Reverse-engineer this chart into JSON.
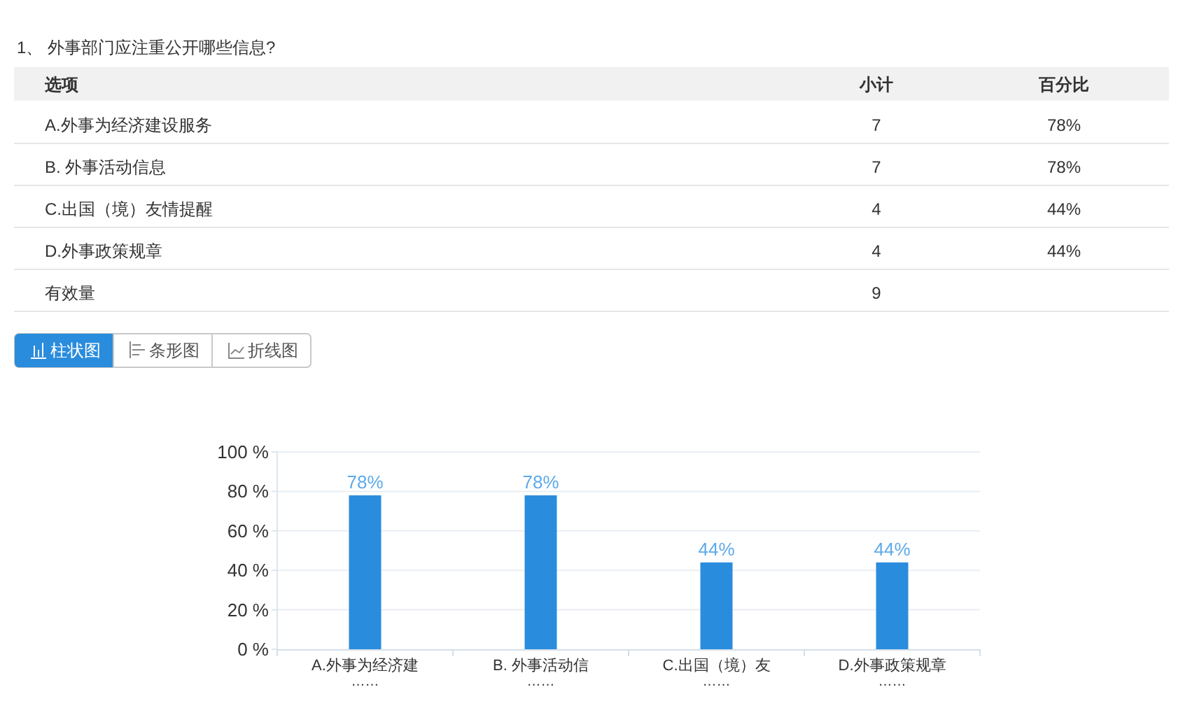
{
  "chart_data": [
    {
      "type": "other",
      "title": "1、 外事部门应注重公开哪些信息?",
      "xlabel": "选项",
      "categories": [
        "A.外事为经济建设服务",
        "B. 外事活动信息",
        "C.出国（境）友情提醒",
        "D.外事政策规章",
        "有效量"
      ],
      "series": [
        {
          "name": "小计",
          "values": [
            7,
            7,
            4,
            4,
            9
          ]
        },
        {
          "name": "百分比",
          "values": [
            78,
            78,
            44,
            44,
            null
          ],
          "value_labels": [
            "78%",
            "78%",
            "44%",
            "44%",
            null
          ]
        }
      ],
      "data_labels": true
    },
    {
      "type": "bar",
      "categories": [
        "A.外事为经济建\n……",
        "B. 外事活动信\n……",
        "C.出国（境）友\n……",
        "D.外事政策规章\n……"
      ],
      "values": [
        78,
        78,
        44,
        44
      ],
      "value_labels": [
        "78%",
        "78%",
        "44%",
        "44%"
      ],
      "color": "#2a8cdd",
      "ylim": [
        0,
        100
      ],
      "yticks": [
        {
          "value": 0,
          "label": "0 %"
        },
        {
          "value": 20,
          "label": "20 %"
        },
        {
          "value": 40,
          "label": "40 %"
        },
        {
          "value": 60,
          "label": "60 %"
        },
        {
          "value": 80,
          "label": "80 %"
        },
        {
          "value": 100,
          "label": "100 %"
        }
      ],
      "grid": "y",
      "annotations": [
        "柱状图",
        "条形图",
        "折线图"
      ]
    }
  ]
}
